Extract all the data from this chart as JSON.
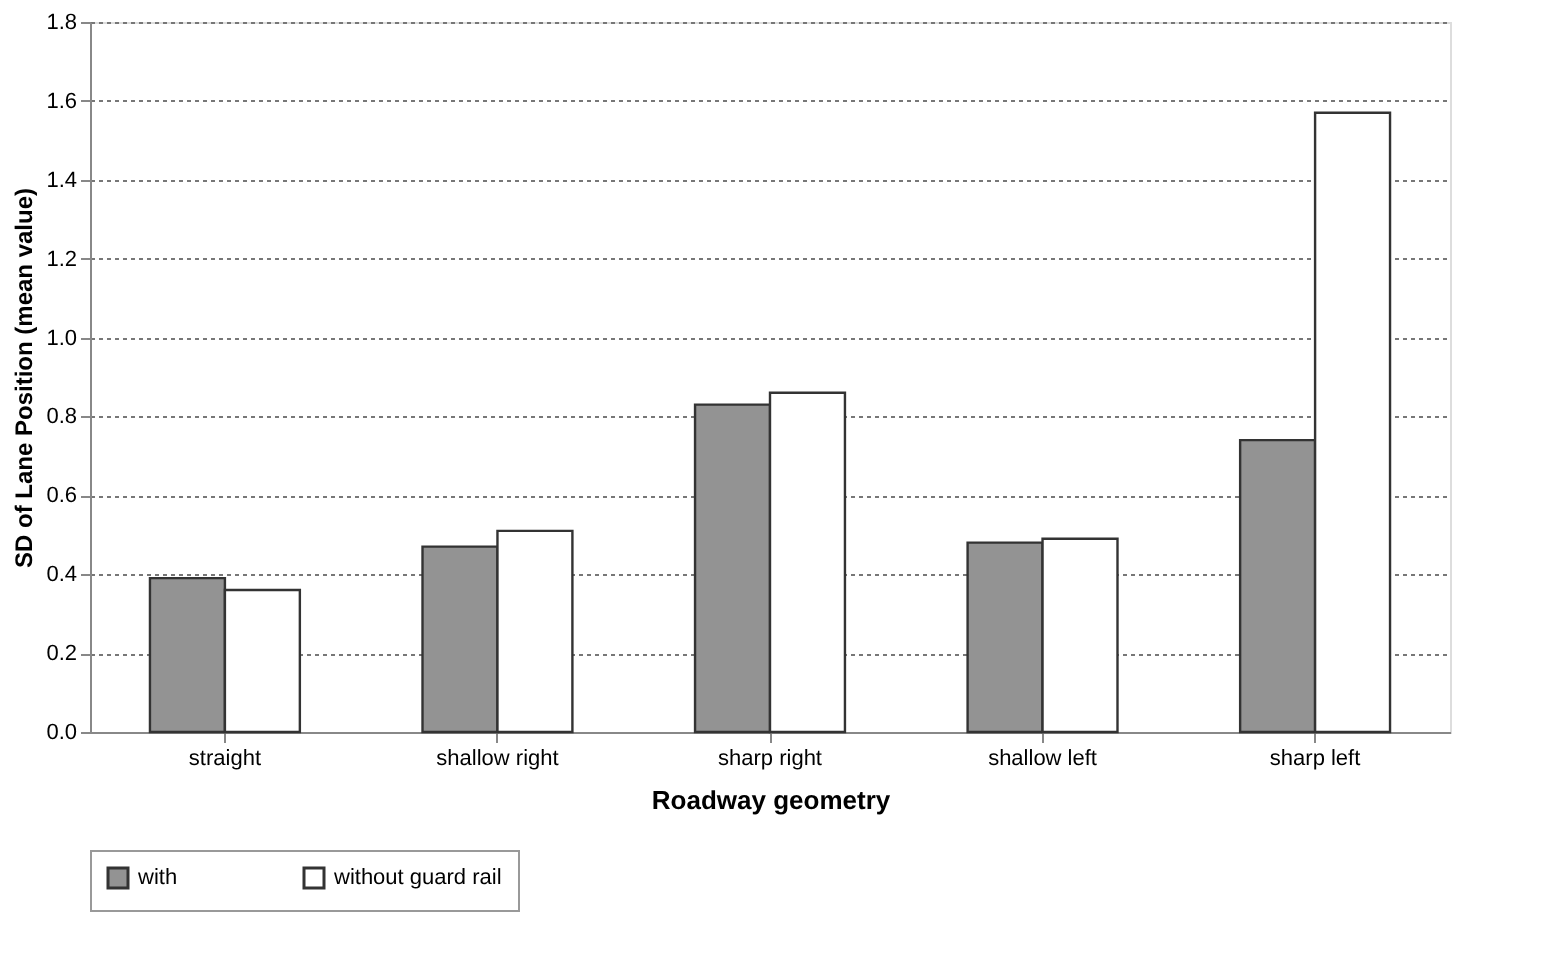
{
  "chart_data": {
    "type": "bar",
    "xlabel": "Roadway geometry",
    "ylabel": "SD of Lane Position (mean value)",
    "categories": [
      "straight",
      "shallow right",
      "sharp right",
      "shallow left",
      "sharp left"
    ],
    "series": [
      {
        "name": "with",
        "color": "#939393",
        "values": [
          0.39,
          0.47,
          0.83,
          0.48,
          0.74
        ]
      },
      {
        "name": "without guard rail",
        "color": "#ffffff",
        "values": [
          0.36,
          0.51,
          0.86,
          0.49,
          1.57
        ]
      }
    ],
    "ylim": [
      0,
      1.8
    ],
    "yticks": [
      {
        "value": 0,
        "label": "0.0"
      },
      {
        "value": 0.2,
        "label": "0.2"
      },
      {
        "value": 0.4,
        "label": "0.4"
      },
      {
        "value": 0.6,
        "label": "0.6"
      },
      {
        "value": 0.8,
        "label": "0.8"
      },
      {
        "value": 1.0,
        "label": "1.0"
      },
      {
        "value": 1.2,
        "label": "1.2"
      },
      {
        "value": 1.4,
        "label": "1.4"
      },
      {
        "value": 1.6,
        "label": "1.6"
      },
      {
        "value": 1.8,
        "label": "1.8"
      }
    ],
    "grid": "y",
    "legend": "bottom"
  }
}
